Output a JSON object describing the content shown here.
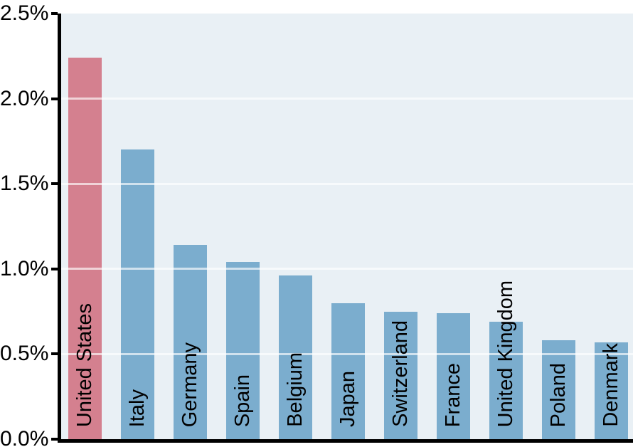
{
  "chart_data": {
    "type": "bar",
    "title": "",
    "xlabel": "",
    "ylabel": "",
    "categories": [
      "United States",
      "Italy",
      "Germany",
      "Spain",
      "Belgium",
      "Japan",
      "Switzerland",
      "France",
      "United Kingdom",
      "Poland",
      "Denmark"
    ],
    "values": [
      2.24,
      1.7,
      1.14,
      1.04,
      0.96,
      0.8,
      0.75,
      0.74,
      0.69,
      0.58,
      0.57
    ],
    "unit": "%",
    "ylim": [
      0.0,
      2.5
    ],
    "yticks": [
      {
        "value": 2.5,
        "label": "2.5%"
      },
      {
        "value": 2.0,
        "label": "2.0%"
      },
      {
        "value": 1.5,
        "label": "1.5%"
      },
      {
        "value": 1.0,
        "label": "1.0%"
      },
      {
        "value": 0.5,
        "label": "0.5%"
      },
      {
        "value": 0.0,
        "label": "0.0%"
      }
    ],
    "gridline_values": [
      0.5,
      1.0,
      1.5,
      2.0
    ],
    "grid": "horizontal gridlines drawn over bars",
    "legend": "none",
    "bar_label_placement": "inside-bottom, rotated 90deg reading bottom-to-top",
    "highlight_category": "United States",
    "colors": {
      "highlight_bar": "#d4808f",
      "default_bar": "#7badce",
      "plot_background": "#e9f0f5",
      "gridline": "rgba(255,255,255,0.65)",
      "axis": "#000000",
      "tick_label_text": "#000000",
      "bar_label_text": "#000000",
      "page_background": "#ffffff"
    }
  }
}
